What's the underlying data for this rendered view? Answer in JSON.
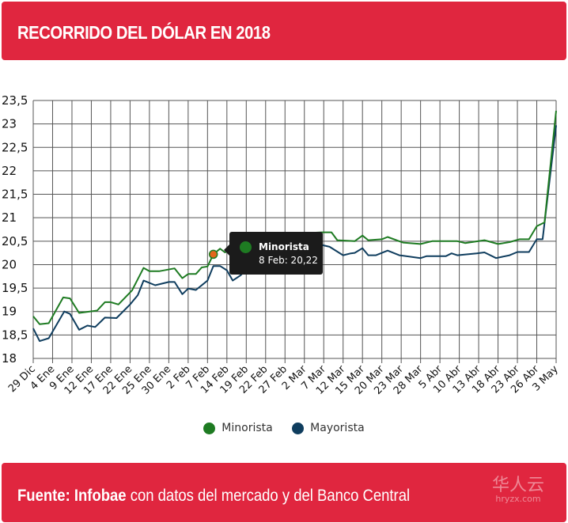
{
  "header": {
    "title": "RECORRIDO DEL DÓLAR EN 2018"
  },
  "footer": {
    "source_label": "Fuente:",
    "source_name": "Infobae",
    "source_rest": " con datos del mercado y del Banco Central"
  },
  "watermark": {
    "chars": "华人云",
    "site": "hryzx.com"
  },
  "colors": {
    "brand": "#e0263f",
    "minorista": "#1e7b22",
    "mayorista": "#0f3d5e",
    "highlight": "#e3661c"
  },
  "tooltip": {
    "series": "Minorista",
    "value_text": "8 Feb: 20,22"
  },
  "chart_data": {
    "type": "line",
    "title": "RECORRIDO DEL DÓLAR EN 2018",
    "categories": [
      "29 Dic",
      "4 Ene",
      "9 Ene",
      "12 Ene",
      "17 Ene",
      "22 Ene",
      "25 Ene",
      "30 Ene",
      "2 Feb",
      "7 Feb",
      "14 Feb",
      "19 Feb",
      "22 Feb",
      "27 Feb",
      "2 Mar",
      "7 Mar",
      "12 Mar",
      "15 Mar",
      "20 Mar",
      "23 Mar",
      "28 Mar",
      "5 Abr",
      "10 Abr",
      "13 Abr",
      "18 Abr",
      "23 Abr",
      "26 Abr",
      "3 May"
    ],
    "yticks": [
      "18",
      "18,5",
      "19",
      "19,5",
      "20",
      "20,5",
      "21",
      "21,5",
      "22",
      "22,5",
      "23",
      "23,5"
    ],
    "ylim": [
      18,
      23.5
    ],
    "grid": true,
    "legend_position": "bottom",
    "series": [
      {
        "name": "Minorista",
        "points": [
          [
            0,
            18.9
          ],
          [
            0.33,
            18.73
          ],
          [
            0.8,
            18.75
          ],
          [
            1.55,
            19.3
          ],
          [
            1.9,
            19.28
          ],
          [
            2.37,
            18.97
          ],
          [
            3.3,
            19.02
          ],
          [
            3.7,
            19.2
          ],
          [
            4,
            19.2
          ],
          [
            4.4,
            19.15
          ],
          [
            5.1,
            19.45
          ],
          [
            5.7,
            19.93
          ],
          [
            6,
            19.86
          ],
          [
            6.5,
            19.86
          ],
          [
            7.3,
            19.92
          ],
          [
            7.7,
            19.71
          ],
          [
            8,
            19.8
          ],
          [
            8.4,
            19.8
          ],
          [
            8.7,
            19.94
          ],
          [
            9,
            19.96
          ],
          [
            9.3,
            20.22
          ],
          [
            9.65,
            20.34
          ],
          [
            9.9,
            20.26
          ],
          [
            11,
            20.5
          ],
          [
            13,
            20.65
          ],
          [
            14.9,
            20.69
          ],
          [
            15.4,
            20.69
          ],
          [
            15.7,
            20.52
          ],
          [
            16.6,
            20.5
          ],
          [
            17,
            20.62
          ],
          [
            17.3,
            20.52
          ],
          [
            18,
            20.54
          ],
          [
            18.3,
            20.59
          ],
          [
            19.1,
            20.47
          ],
          [
            20,
            20.44
          ],
          [
            20.6,
            20.5
          ],
          [
            21.9,
            20.5
          ],
          [
            22.3,
            20.46
          ],
          [
            23.3,
            20.52
          ],
          [
            24,
            20.44
          ],
          [
            24.6,
            20.48
          ],
          [
            25.1,
            20.54
          ],
          [
            25.6,
            20.54
          ],
          [
            26,
            20.82
          ],
          [
            26.4,
            20.9
          ],
          [
            27,
            23.28
          ]
        ]
      },
      {
        "name": "Mayorista",
        "points": [
          [
            0,
            18.64
          ],
          [
            0.33,
            18.37
          ],
          [
            0.8,
            18.43
          ],
          [
            1.6,
            19.0
          ],
          [
            1.9,
            18.95
          ],
          [
            2.37,
            18.61
          ],
          [
            2.8,
            18.7
          ],
          [
            3.2,
            18.67
          ],
          [
            3.7,
            18.87
          ],
          [
            4.3,
            18.86
          ],
          [
            5,
            19.15
          ],
          [
            5.4,
            19.35
          ],
          [
            5.7,
            19.66
          ],
          [
            6.3,
            19.56
          ],
          [
            7,
            19.63
          ],
          [
            7.3,
            19.63
          ],
          [
            7.7,
            19.37
          ],
          [
            8,
            19.49
          ],
          [
            8.4,
            19.46
          ],
          [
            9,
            19.66
          ],
          [
            9.3,
            19.97
          ],
          [
            9.65,
            19.97
          ],
          [
            10,
            19.88
          ],
          [
            10.3,
            19.66
          ],
          [
            10.7,
            19.77
          ],
          [
            12,
            20.3
          ],
          [
            14,
            20.4
          ],
          [
            14.9,
            20.42
          ],
          [
            15.3,
            20.38
          ],
          [
            16,
            20.2
          ],
          [
            16.4,
            20.24
          ],
          [
            16.6,
            20.25
          ],
          [
            17,
            20.35
          ],
          [
            17.3,
            20.2
          ],
          [
            17.7,
            20.2
          ],
          [
            18.3,
            20.3
          ],
          [
            18.9,
            20.2
          ],
          [
            20,
            20.14
          ],
          [
            20.3,
            20.18
          ],
          [
            21.3,
            20.18
          ],
          [
            21.6,
            20.24
          ],
          [
            21.9,
            20.2
          ],
          [
            22.9,
            20.24
          ],
          [
            23.3,
            20.26
          ],
          [
            23.9,
            20.14
          ],
          [
            24.6,
            20.2
          ],
          [
            25,
            20.27
          ],
          [
            25.6,
            20.27
          ],
          [
            26,
            20.54
          ],
          [
            26.3,
            20.54
          ],
          [
            27,
            22.97
          ]
        ]
      }
    ],
    "highlighted_point": {
      "series": "Minorista",
      "category": "8 Feb",
      "index": 9.3,
      "value": 20.22
    }
  }
}
